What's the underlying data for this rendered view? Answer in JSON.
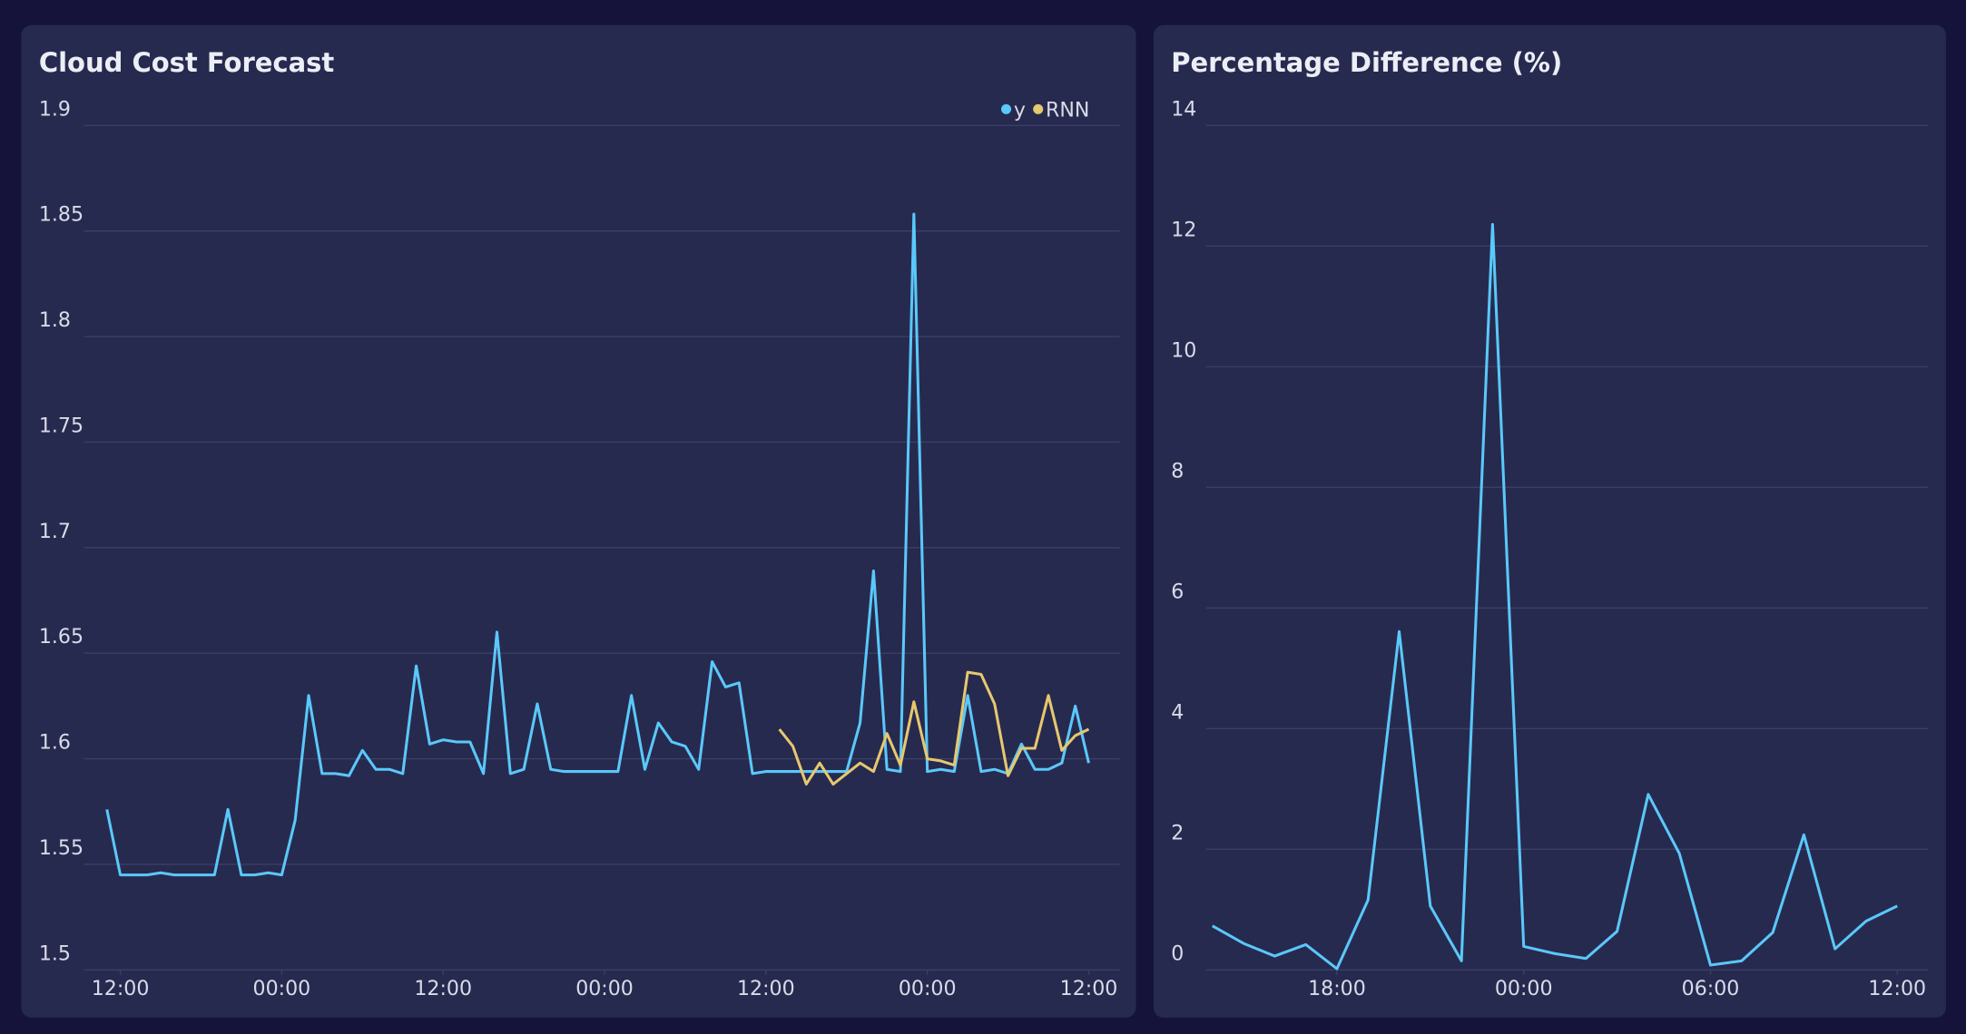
{
  "chart_data": [
    {
      "type": "line",
      "title": "Cloud Cost Forecast",
      "x": [
        -1,
        0,
        1,
        2,
        3,
        4,
        5,
        6,
        7,
        8,
        9,
        10,
        11,
        12,
        13,
        14,
        15,
        16,
        17,
        18,
        19,
        20,
        21,
        22,
        23,
        24,
        25,
        26,
        27,
        28,
        29,
        30,
        31,
        32,
        33,
        34,
        35,
        36,
        37,
        38,
        39,
        40,
        41,
        42,
        43,
        44,
        45,
        46,
        47,
        48,
        49,
        50,
        51,
        52,
        53,
        54,
        55,
        56,
        57,
        58,
        59,
        60,
        61,
        62,
        63,
        64,
        65,
        66,
        67,
        68,
        69,
        70,
        71,
        72
      ],
      "series": [
        {
          "name": "y",
          "color": "#5ac8fa",
          "values": [
            1.576,
            1.545,
            1.545,
            1.545,
            1.546,
            1.545,
            1.545,
            1.545,
            1.545,
            1.576,
            1.545,
            1.545,
            1.546,
            1.545,
            1.571,
            1.63,
            1.593,
            1.593,
            1.592,
            1.604,
            1.595,
            1.595,
            1.593,
            1.644,
            1.607,
            1.609,
            1.608,
            1.608,
            1.593,
            1.66,
            1.593,
            1.595,
            1.626,
            1.595,
            1.594,
            1.594,
            1.594,
            1.594,
            1.594,
            1.63,
            1.595,
            1.617,
            1.608,
            1.606,
            1.595,
            1.646,
            1.634,
            1.636,
            1.593,
            1.594,
            1.594,
            1.594,
            1.594,
            1.594,
            1.594,
            1.594,
            1.617,
            1.689,
            1.595,
            1.594,
            1.858,
            1.594,
            1.595,
            1.594,
            1.63,
            1.594,
            1.595,
            1.593,
            1.607,
            1.595,
            1.595,
            1.598,
            1.625,
            1.598
          ]
        },
        {
          "name": "RNN",
          "color": "#e6c86e",
          "values": [
            null,
            null,
            null,
            null,
            null,
            null,
            null,
            null,
            null,
            null,
            null,
            null,
            null,
            null,
            null,
            null,
            null,
            null,
            null,
            null,
            null,
            null,
            null,
            null,
            null,
            null,
            null,
            null,
            null,
            null,
            null,
            null,
            null,
            null,
            null,
            null,
            null,
            null,
            null,
            null,
            null,
            null,
            null,
            null,
            null,
            null,
            null,
            null,
            null,
            null,
            1.614,
            1.606,
            1.588,
            1.598,
            1.588,
            1.593,
            1.598,
            1.594,
            1.612,
            1.597,
            1.627,
            1.6,
            1.599,
            1.597,
            1.641,
            1.64,
            1.626,
            1.592,
            1.605,
            1.605,
            1.63,
            1.604,
            1.611,
            1.614
          ]
        }
      ],
      "xlim": [
        -2.7,
        74.3
      ],
      "xticks": [
        {
          "value": 0,
          "label": "12:00"
        },
        {
          "value": 12,
          "label": "00:00"
        },
        {
          "value": 24,
          "label": "12:00"
        },
        {
          "value": 36,
          "label": "00:00"
        },
        {
          "value": 48,
          "label": "12:00"
        },
        {
          "value": 60,
          "label": "00:00"
        },
        {
          "value": 72,
          "label": "12:00"
        }
      ],
      "ylim": [
        1.5,
        1.9
      ],
      "yticks": [
        1.5,
        1.55,
        1.6,
        1.65,
        1.7,
        1.75,
        1.8,
        1.85,
        1.9
      ],
      "grid": true,
      "legend": "top-right"
    },
    {
      "type": "line",
      "title": "Percentage Difference (%)",
      "x": [
        -4,
        -3,
        -2,
        -1,
        0,
        1,
        2,
        3,
        4,
        5,
        6,
        7,
        8,
        9,
        10,
        11,
        12,
        13,
        14,
        15,
        16,
        17,
        18
      ],
      "series": [
        {
          "color": "#5ac8fa",
          "values": [
            0.73,
            0.44,
            0.23,
            0.42,
            0.02,
            1.16,
            5.61,
            1.06,
            0.15,
            12.36,
            0.39,
            0.27,
            0.19,
            0.64,
            2.91,
            1.93,
            0.08,
            0.15,
            0.62,
            2.24,
            0.35,
            0.81,
            1.06
          ]
        }
      ],
      "xlim": [
        -4.2,
        19
      ],
      "xticks": [
        {
          "value": 0,
          "label": "18:00"
        },
        {
          "value": 6,
          "label": "00:00"
        },
        {
          "value": 12,
          "label": "06:00"
        },
        {
          "value": 18,
          "label": "12:00"
        }
      ],
      "ylim": [
        0,
        14
      ],
      "yticks": [
        0,
        2,
        4,
        6,
        8,
        10,
        12,
        14
      ],
      "grid": true
    }
  ]
}
